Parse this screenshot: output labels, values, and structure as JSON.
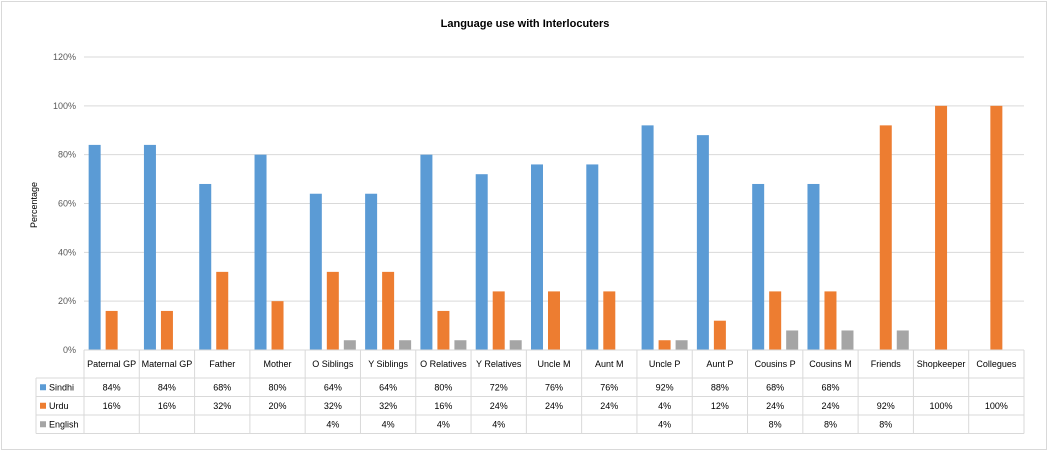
{
  "chart_data": {
    "type": "bar",
    "title": "Language use with Interlocuters",
    "xlabel": "",
    "ylabel": "Percentage",
    "ylim": [
      0,
      120
    ],
    "yticks": [
      0,
      20,
      40,
      60,
      80,
      100,
      120
    ],
    "ytick_labels": [
      "0%",
      "20%",
      "40%",
      "60%",
      "80%",
      "100%",
      "120%"
    ],
    "grid": true,
    "legend": "data-table",
    "categories": [
      "Paternal GP",
      "Maternal GP",
      "Father",
      "Mother",
      "O Siblings",
      "Y Siblings",
      "O Relatives",
      "Y Relatives",
      "Uncle M",
      "Aunt M",
      "Uncle P",
      "Aunt P",
      "Cousins P",
      "Cousins M",
      "Friends",
      "Shopkeeper",
      "Collegues"
    ],
    "series": [
      {
        "name": "Sindhi",
        "color": "#5b9bd5",
        "values": [
          84,
          84,
          68,
          80,
          64,
          64,
          80,
          72,
          76,
          76,
          92,
          88,
          68,
          68,
          null,
          null,
          null
        ],
        "labels": [
          "84%",
          "84%",
          "68%",
          "80%",
          "64%",
          "64%",
          "80%",
          "72%",
          "76%",
          "76%",
          "92%",
          "88%",
          "68%",
          "68%",
          "",
          "",
          ""
        ]
      },
      {
        "name": "Urdu",
        "color": "#ed7d31",
        "values": [
          16,
          16,
          32,
          20,
          32,
          32,
          16,
          24,
          24,
          24,
          4,
          12,
          24,
          24,
          92,
          100,
          100
        ],
        "labels": [
          "16%",
          "16%",
          "32%",
          "20%",
          "32%",
          "32%",
          "16%",
          "24%",
          "24%",
          "24%",
          "4%",
          "12%",
          "24%",
          "24%",
          "92%",
          "100%",
          "100%"
        ]
      },
      {
        "name": "English",
        "color": "#a5a5a5",
        "values": [
          null,
          null,
          null,
          null,
          4,
          4,
          4,
          4,
          null,
          null,
          4,
          null,
          8,
          8,
          8,
          null,
          null
        ],
        "labels": [
          "",
          "",
          "",
          "",
          "4%",
          "4%",
          "4%",
          "4%",
          "",
          "",
          "4%",
          "",
          "8%",
          "8%",
          "8%",
          "",
          ""
        ]
      }
    ]
  }
}
